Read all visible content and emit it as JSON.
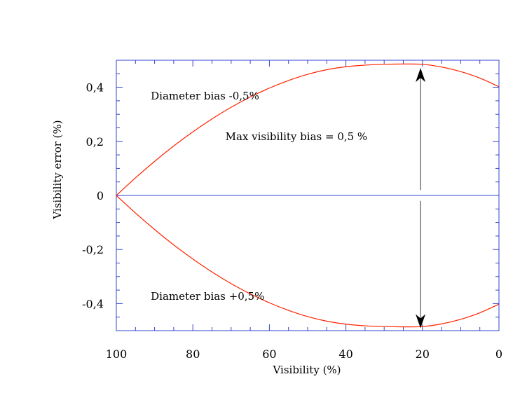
{
  "chart_data": {
    "type": "line",
    "title": "",
    "xlabel": "Visibility (%)",
    "ylabel": "Visibility error (%)",
    "xlim": [
      100,
      0
    ],
    "ylim": [
      -0.5,
      0.5
    ],
    "x_ticks": [
      100,
      80,
      60,
      40,
      20,
      0
    ],
    "x_tick_labels": [
      "100",
      "80",
      "60",
      "40",
      "20",
      "0"
    ],
    "y_ticks": [
      0.4,
      0.2,
      0,
      -0.2,
      -0.4
    ],
    "y_tick_labels": [
      "0,4",
      "0,2",
      "0",
      "-0,2",
      "-0,4"
    ],
    "grid": false,
    "colors": {
      "series": "#ff2200",
      "frame": "#3344cc",
      "zero_line": "#3344cc",
      "arrow": "#000000"
    },
    "series": [
      {
        "name": "Diameter bias -0,5%",
        "x": [
          100,
          95,
          90,
          85,
          80,
          75,
          70,
          65,
          60,
          55,
          50,
          45,
          40,
          35,
          30,
          25,
          20,
          15,
          10,
          5,
          0
        ],
        "y": [
          0,
          0.065,
          0.126,
          0.183,
          0.235,
          0.283,
          0.326,
          0.364,
          0.397,
          0.425,
          0.448,
          0.465,
          0.476,
          0.482,
          0.485,
          0.486,
          0.485,
          0.475,
          0.458,
          0.434,
          0.402
        ]
      },
      {
        "name": "Diameter bias +0,5%",
        "x": [
          100,
          95,
          90,
          85,
          80,
          75,
          70,
          65,
          60,
          55,
          50,
          45,
          40,
          35,
          30,
          25,
          20,
          15,
          10,
          5,
          0
        ],
        "y": [
          0,
          -0.065,
          -0.126,
          -0.183,
          -0.235,
          -0.283,
          -0.326,
          -0.364,
          -0.397,
          -0.425,
          -0.448,
          -0.465,
          -0.476,
          -0.482,
          -0.485,
          -0.486,
          -0.485,
          -0.475,
          -0.458,
          -0.434,
          -0.402
        ]
      }
    ],
    "annotations": [
      {
        "text": "Diameter bias -0,5%",
        "x": 91,
        "y": 0.37
      },
      {
        "text": "Diameter bias +0,5%",
        "x": 91,
        "y": -0.37
      },
      {
        "text": "Max visibility bias  = 0,5 %",
        "x": 71.5,
        "y": 0.22
      }
    ],
    "double_arrow": {
      "x": 20.5,
      "y_top": 0.44,
      "y_bottom": -0.46,
      "gap_top": 0.02,
      "gap_bottom": -0.02
    }
  }
}
